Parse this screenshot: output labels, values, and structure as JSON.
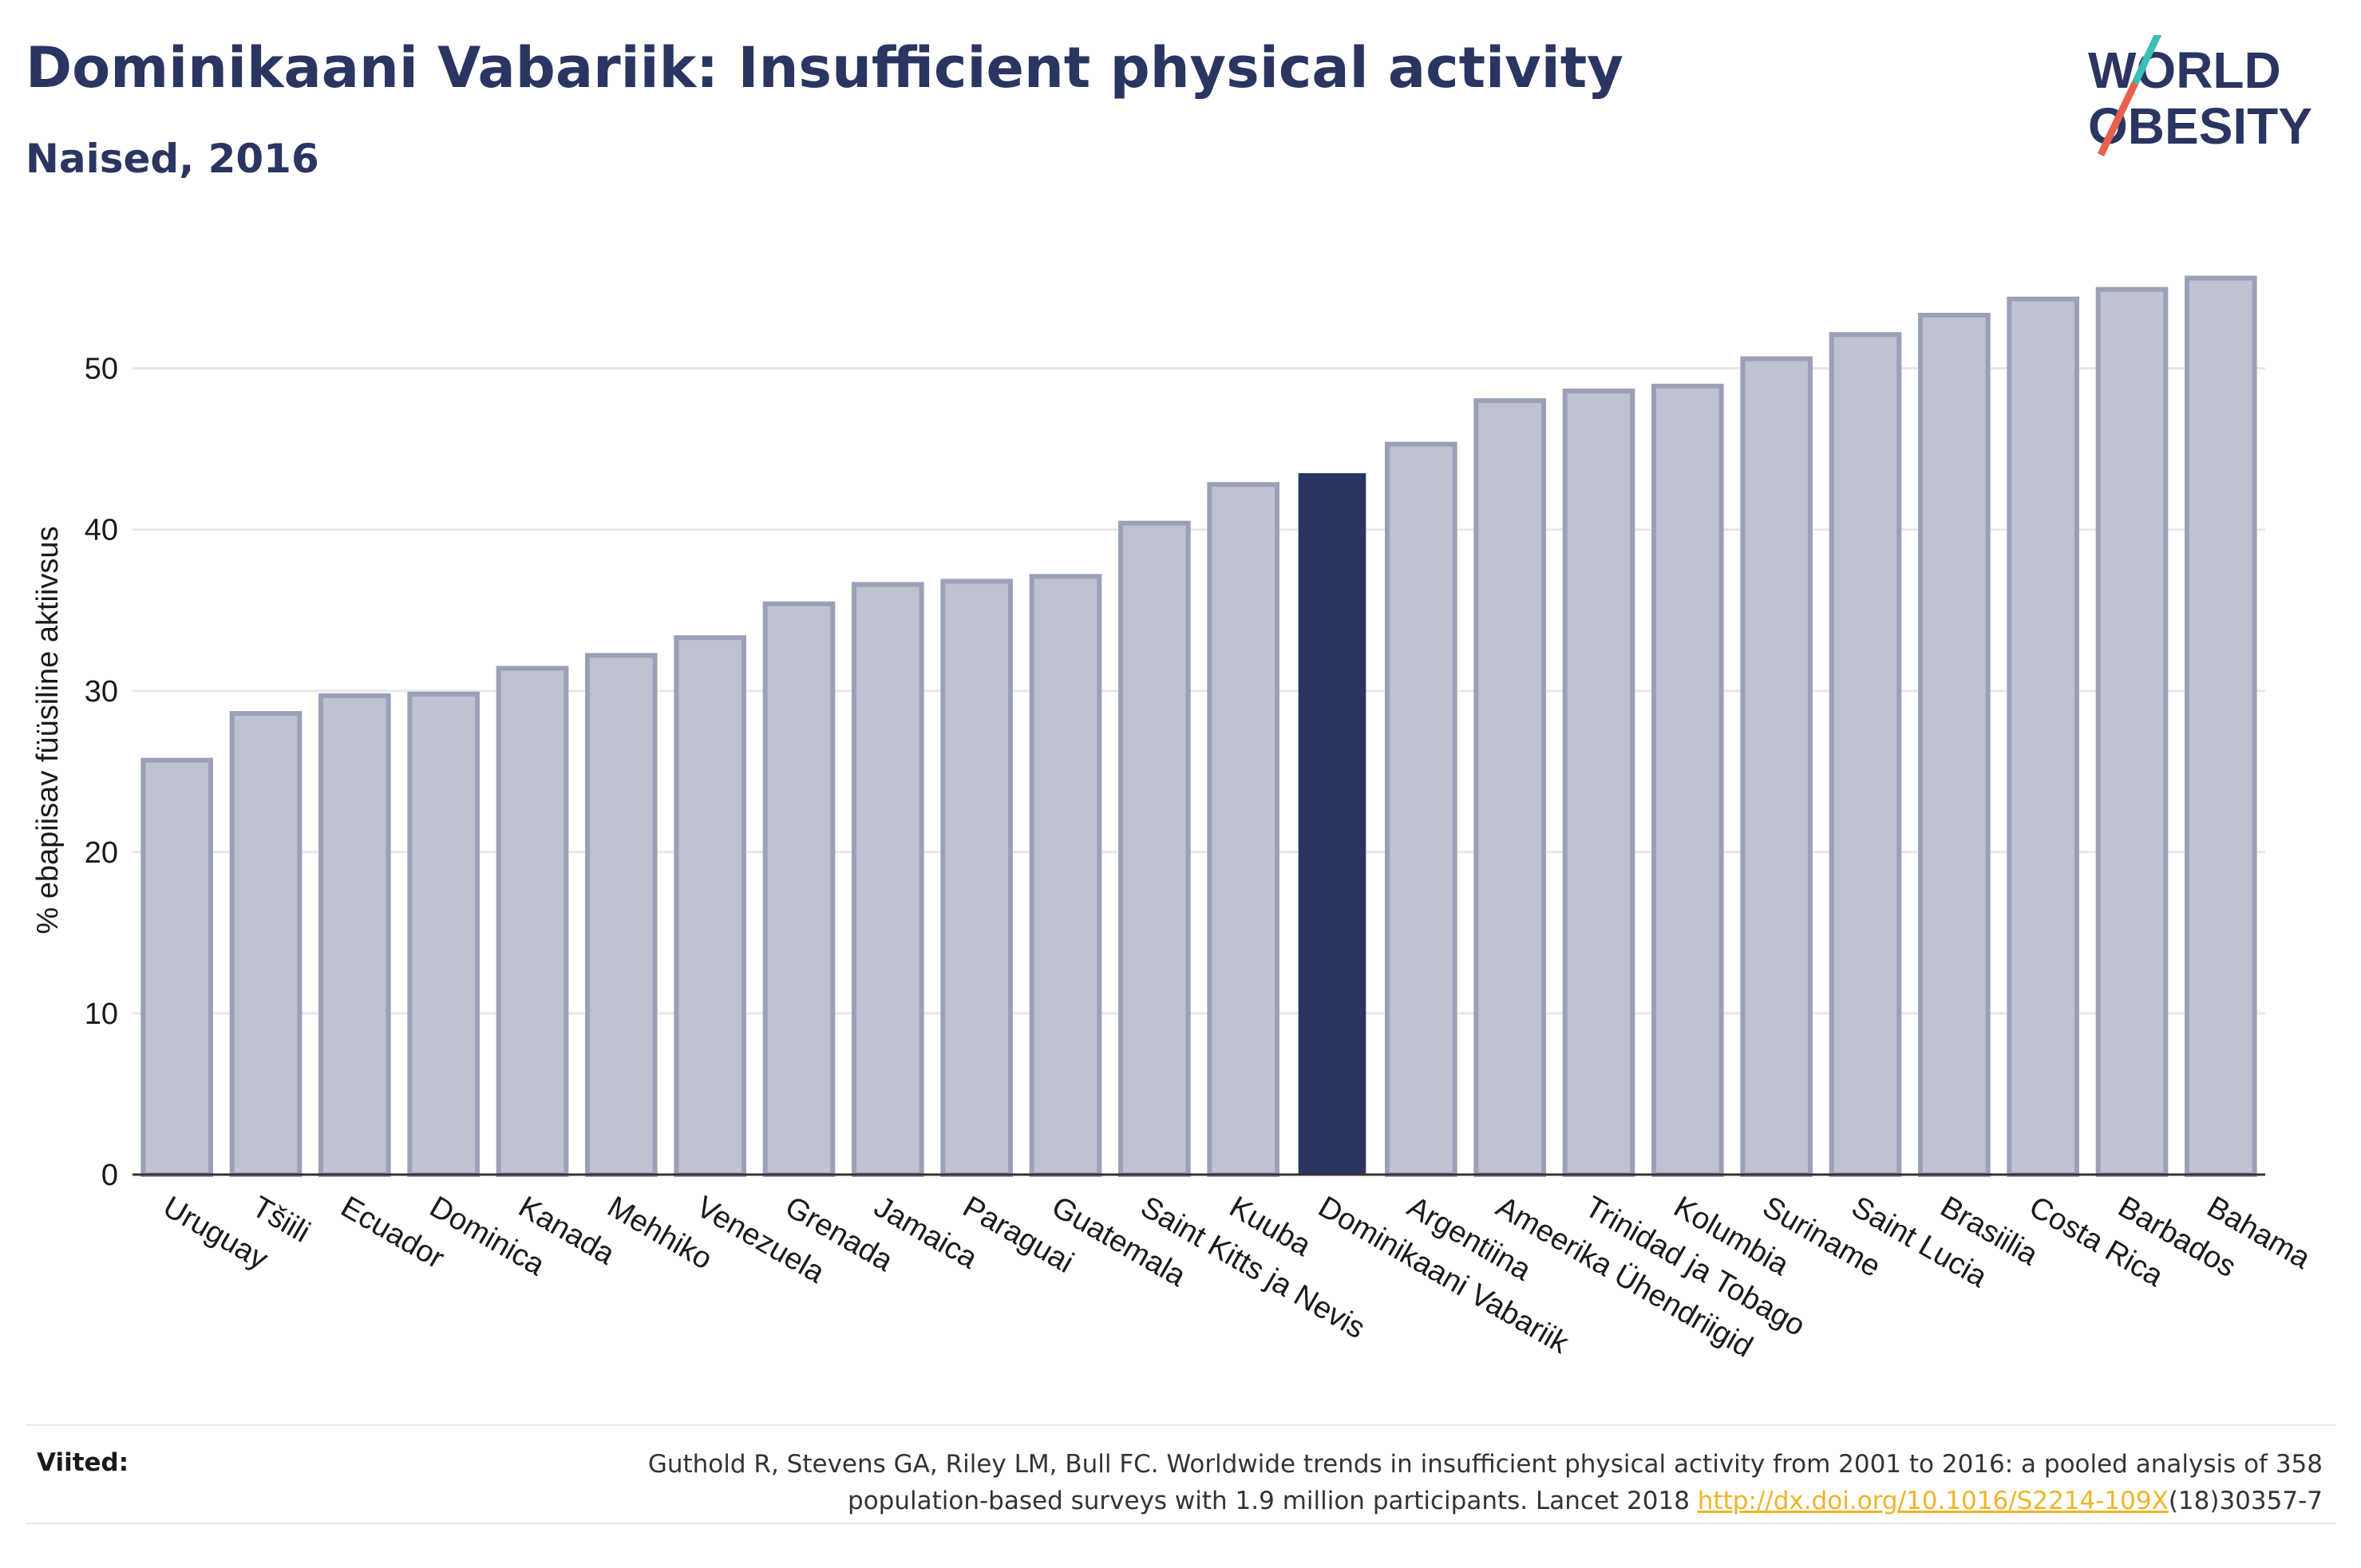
{
  "header": {
    "title": "Dominikaani Vabariik: Insufficient physical activity",
    "subtitle": "Naised, 2016"
  },
  "logo": {
    "line1": "WORLD",
    "line2": "OBESITY",
    "colors": {
      "text": "#2a3561",
      "slash_teal": "#3cbfb4",
      "slash_red": "#e8604c"
    }
  },
  "chart_data": {
    "type": "bar",
    "title": "Dominikaani Vabariik: Insufficient physical activity",
    "subtitle": "Naised, 2016",
    "ylabel": "% ebapiisav füüsiline aktiivsus",
    "xlabel": "",
    "ylim": [
      0,
      58
    ],
    "yticks": [
      0,
      10,
      20,
      30,
      40,
      50
    ],
    "grid": true,
    "highlight": "Dominikaani Vabariik",
    "colors": {
      "bar": "#bfc2d0",
      "bar_edge": "#9aa0b8",
      "highlight": "#2a3561",
      "axis": "#333333",
      "grid": "#e6e8ee"
    },
    "categories": [
      "Uruguay",
      "Tšiili",
      "Ecuador",
      "Dominica",
      "Kanada",
      "Mehhiko",
      "Venezuela",
      "Grenada",
      "Jamaica",
      "Paraguai",
      "Guatemala",
      "Saint Kitts ja Nevis",
      "Kuuba",
      "Dominikaani Vabariik",
      "Argentiina",
      "Ameerika Ühendriigid",
      "Trinidad ja Tobago",
      "Kolumbia",
      "Suriname",
      "Saint Lucia",
      "Brasiilia",
      "Costa Rica",
      "Barbados",
      "Bahama"
    ],
    "values": [
      25.7,
      28.6,
      29.7,
      29.8,
      31.4,
      32.2,
      33.3,
      35.4,
      36.6,
      36.8,
      37.1,
      40.4,
      42.8,
      43.5,
      45.3,
      48.0,
      48.6,
      48.9,
      50.6,
      52.1,
      53.3,
      54.3,
      54.9,
      55.6
    ]
  },
  "footer": {
    "label": "Viited:",
    "text_line1": "Guthold R, Stevens GA, Riley LM, Bull FC. Worldwide trends in insufficient physical activity from 2001 to 2016: a pooled analysis of 358",
    "text_line2_pre": "population-based surveys with 1.9 million participants. Lancet 2018 ",
    "link": "http://dx.doi.org/10.1016/S2214-109X",
    "text_line2_post": "(18)30357-7"
  }
}
